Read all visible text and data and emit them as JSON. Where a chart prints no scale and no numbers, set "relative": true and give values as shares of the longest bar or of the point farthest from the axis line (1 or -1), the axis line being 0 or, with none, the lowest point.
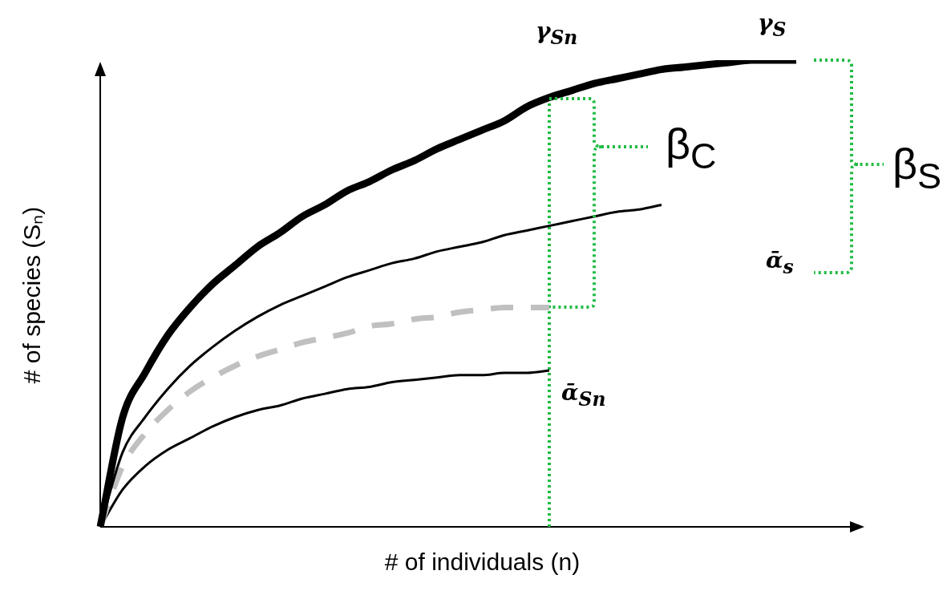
{
  "chart_data": {
    "type": "line",
    "relative": true,
    "xlabel": "# of individuals (n)",
    "ylabel": "# of species (Sₙ)",
    "marker": "none",
    "categories": [
      null,
      null,
      null,
      null,
      null,
      null,
      null,
      null,
      null,
      null,
      null,
      null,
      null,
      null,
      null,
      null,
      null,
      null,
      null,
      null,
      null,
      null,
      null,
      null,
      null,
      null,
      null,
      null,
      null,
      null,
      null,
      null,
      null,
      null,
      null
    ],
    "series": [
      {
        "color": "#000000",
        "values": [
          0,
          0.235,
          0.33,
          0.41,
          0.47,
          0.52,
          0.56,
          0.6,
          0.63,
          0.665,
          0.69,
          0.72,
          0.74,
          0.765,
          0.785,
          0.81,
          0.83,
          0.85,
          0.87,
          0.9,
          0.92,
          0.935,
          0.95,
          0.96,
          0.97,
          0.98,
          0.985,
          0.99,
          0.995,
          1,
          1,
          1,
          null,
          null,
          null
        ]
      },
      {
        "color": "#000000",
        "values": [
          0,
          0.16,
          0.235,
          0.295,
          0.345,
          0.385,
          0.42,
          0.45,
          0.475,
          0.495,
          0.515,
          0.535,
          0.55,
          0.565,
          0.575,
          0.59,
          0.6,
          0.61,
          0.625,
          0.635,
          0.645,
          0.655,
          0.665,
          0.675,
          0.68,
          0.69,
          null,
          null,
          null,
          null,
          null,
          null,
          null,
          null,
          null
        ]
      },
      {
        "color": "#c0c0c0",
        "line_style": "dashed",
        "values": [
          0,
          0.13,
          0.2,
          0.25,
          0.29,
          0.32,
          0.345,
          0.365,
          0.38,
          0.395,
          0.405,
          0.415,
          0.43,
          0.435,
          0.445,
          0.45,
          0.46,
          0.465,
          0.47,
          0.47,
          0.47,
          null,
          null,
          null,
          null,
          null,
          null,
          null,
          null,
          null,
          null,
          null,
          null,
          null,
          null
        ]
      },
      {
        "color": "#000000",
        "values": [
          0,
          0.08,
          0.13,
          0.165,
          0.19,
          0.215,
          0.235,
          0.25,
          0.26,
          0.275,
          0.285,
          0.295,
          0.3,
          0.31,
          0.315,
          0.32,
          0.325,
          0.325,
          0.33,
          0.33,
          0.335,
          null,
          null,
          null,
          null,
          null,
          null,
          null,
          null,
          null,
          null,
          null,
          null,
          null,
          null
        ]
      }
    ],
    "annotations": [
      "γ$_{Sn}$",
      "γ$_{S}$",
      "β$_{C}$",
      "β$_{S}$",
      "ᾱ$_{s}$",
      "ᾱ$_{Sn}$"
    ]
  }
}
